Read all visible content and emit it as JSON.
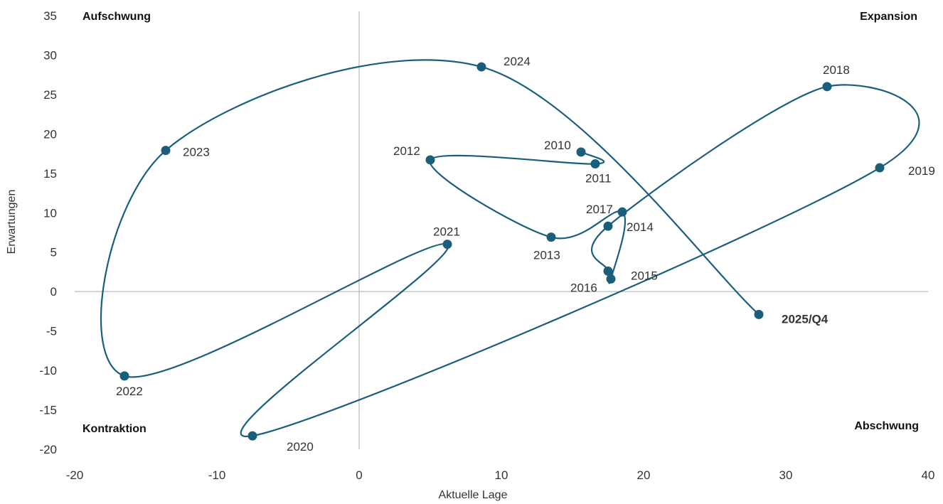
{
  "chart_data": {
    "type": "scatter",
    "xlabel": "Aktuelle Lage",
    "ylabel": "Erwartungen",
    "xlim": [
      -20,
      40
    ],
    "ylim": [
      -20,
      35
    ],
    "xticks": [
      "-20",
      "-10",
      "0",
      "10",
      "20",
      "30",
      "40"
    ],
    "yticks": [
      "35",
      "30",
      "25",
      "20",
      "15",
      "10",
      "5",
      "0",
      "-5",
      "-10",
      "-15",
      "-20"
    ],
    "grid": false,
    "connected": true,
    "colors": {
      "series": "#1a5f7a",
      "highlight": "#e8734a"
    },
    "quadrants": {
      "top_left": "Aufschwung",
      "top_right": "Expansion",
      "bottom_left": "Kontraktion",
      "bottom_right": "Abschwung"
    },
    "points": [
      {
        "label": "2010",
        "x": 15.6,
        "y": 17.7
      },
      {
        "label": "2011",
        "x": 16.6,
        "y": 16.2
      },
      {
        "label": "2012",
        "x": 5.0,
        "y": 16.7
      },
      {
        "label": "2013",
        "x": 13.5,
        "y": 6.9
      },
      {
        "label": "2014",
        "x": 18.5,
        "y": 10.1
      },
      {
        "label": "2015",
        "x": 17.7,
        "y": 1.6
      },
      {
        "label": "2016",
        "x": 17.5,
        "y": 2.6
      },
      {
        "label": "2017",
        "x": 17.5,
        "y": 8.3
      },
      {
        "label": "2018",
        "x": 32.9,
        "y": 26.0
      },
      {
        "label": "2019",
        "x": 36.6,
        "y": 15.7
      },
      {
        "label": "2020",
        "x": -7.5,
        "y": -18.3
      },
      {
        "label": "2021",
        "x": 6.2,
        "y": 6.0
      },
      {
        "label": "2022",
        "x": -16.5,
        "y": -10.7
      },
      {
        "label": "2023",
        "x": -13.6,
        "y": 17.9
      },
      {
        "label": "2024",
        "x": 8.6,
        "y": 28.5
      },
      {
        "label": "2025/Q4",
        "x": 28.1,
        "y": -2.9,
        "highlight": true
      }
    ]
  }
}
